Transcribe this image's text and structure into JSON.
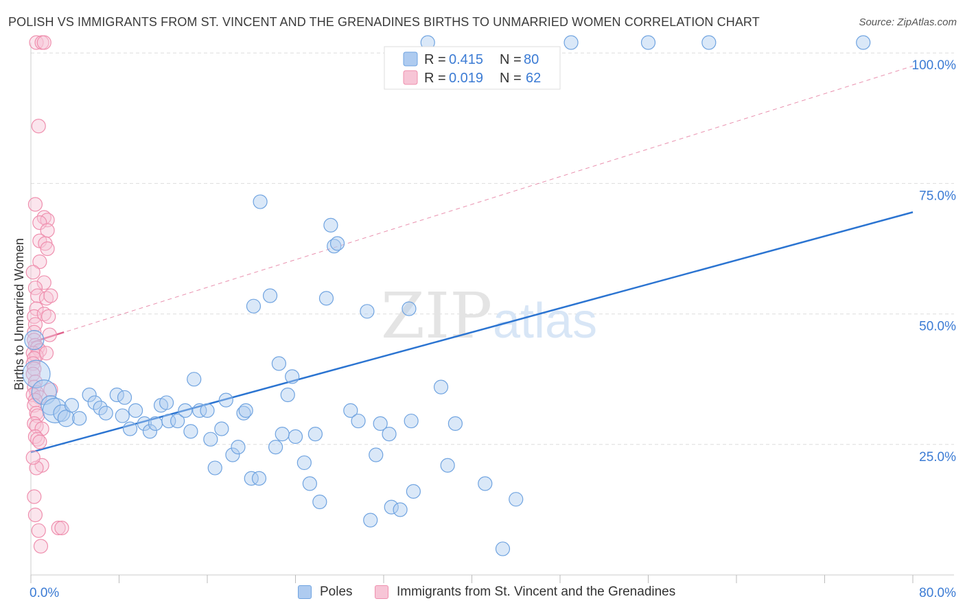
{
  "title": "POLISH VS IMMIGRANTS FROM ST. VINCENT AND THE GRENADINES BIRTHS TO UNMARRIED WOMEN CORRELATION CHART",
  "source": "Source: ZipAtlas.com",
  "watermark": {
    "zip": "ZIP",
    "atlas": "atlas"
  },
  "colors": {
    "poles": "#6fa3e0",
    "poles_fill": "#aecbf0",
    "immigrants": "#ef8fae",
    "immigrants_fill": "#f7c5d6",
    "poles_line": "#2b74d1",
    "immigrants_line": "#e0628c",
    "axis_label": "#3b7bd4",
    "grid": "#dddddd"
  },
  "legend_top": {
    "rows": [
      {
        "r_label": "R = ",
        "r_value": "0.415",
        "n_label": "N = ",
        "n_value": "80"
      },
      {
        "r_label": "R = ",
        "r_value": "0.019",
        "n_label": "N = ",
        "n_value": "62"
      }
    ]
  },
  "legend_bottom": {
    "items": [
      {
        "label": "Poles"
      },
      {
        "label": "Immigrants from St. Vincent and the Grenadines"
      }
    ]
  },
  "chart_data": {
    "type": "scatter",
    "title": "POLISH VS IMMIGRANTS FROM ST. VINCENT AND THE GRENADINES BIRTHS TO UNMARRIED WOMEN CORRELATION CHART",
    "xlabel": "",
    "ylabel": "Births to Unmarried Women",
    "xlim": [
      0,
      80
    ],
    "ylim": [
      0,
      102
    ],
    "x_tick_labels": [
      {
        "value": 0,
        "label": "0.0%"
      },
      {
        "value": 80,
        "label": "80.0%"
      }
    ],
    "y_tick_labels": [
      {
        "value": 25,
        "label": "25.0%"
      },
      {
        "value": 50,
        "label": "50.0%"
      },
      {
        "value": 75,
        "label": "75.0%"
      },
      {
        "value": 100,
        "label": "100.0%"
      }
    ],
    "series": [
      {
        "name": "Poles",
        "R": 0.415,
        "N": 80,
        "trend": {
          "x0": 0,
          "y0": 23.5,
          "x1": 80,
          "y1": 69.5,
          "style": "solid"
        },
        "points": [
          [
            0.3,
            45,
            14
          ],
          [
            0.5,
            38.5,
            20
          ],
          [
            1.2,
            35,
            18
          ],
          [
            1.8,
            32.5,
            14
          ],
          [
            2.2,
            31.5,
            18
          ],
          [
            2.8,
            31,
            12
          ],
          [
            3.2,
            30,
            12
          ],
          [
            3.7,
            32.5,
            10
          ],
          [
            4.4,
            30,
            10
          ],
          [
            5.3,
            34.5,
            10
          ],
          [
            5.8,
            33,
            10
          ],
          [
            6.3,
            32,
            10
          ],
          [
            6.8,
            31,
            10
          ],
          [
            7.8,
            34.5,
            10
          ],
          [
            8.5,
            34,
            10
          ],
          [
            8.3,
            30.5,
            10
          ],
          [
            9.0,
            28,
            10
          ],
          [
            9.5,
            31.5,
            10
          ],
          [
            10.3,
            29,
            10
          ],
          [
            10.8,
            27.5,
            10
          ],
          [
            11.3,
            29,
            10
          ],
          [
            11.8,
            32.5,
            10
          ],
          [
            12.3,
            33,
            10
          ],
          [
            12.5,
            29.5,
            10
          ],
          [
            13.3,
            29.5,
            10
          ],
          [
            14.0,
            31.5,
            10
          ],
          [
            14.5,
            27.5,
            10
          ],
          [
            15.3,
            31.5,
            10
          ],
          [
            16.0,
            31.5,
            10
          ],
          [
            14.8,
            37.5,
            10
          ],
          [
            16.3,
            26,
            10
          ],
          [
            16.7,
            20.5,
            10
          ],
          [
            17.3,
            28,
            10
          ],
          [
            17.7,
            33.5,
            10
          ],
          [
            18.3,
            23,
            10
          ],
          [
            18.8,
            24.5,
            10
          ],
          [
            19.3,
            31,
            10
          ],
          [
            19.5,
            31.5,
            10
          ],
          [
            20.0,
            18.5,
            10
          ],
          [
            20.2,
            51.5,
            10
          ],
          [
            20.7,
            18.5,
            10
          ],
          [
            20.8,
            71.5,
            10
          ],
          [
            21.7,
            53.5,
            10
          ],
          [
            22.2,
            24.5,
            10
          ],
          [
            22.5,
            40.5,
            10
          ],
          [
            22.8,
            27,
            10
          ],
          [
            23.3,
            34.5,
            10
          ],
          [
            23.7,
            38,
            10
          ],
          [
            24.0,
            26.5,
            10
          ],
          [
            24.8,
            21.5,
            10
          ],
          [
            25.3,
            17.5,
            10
          ],
          [
            25.8,
            27,
            10
          ],
          [
            26.2,
            14,
            10
          ],
          [
            26.8,
            53,
            10
          ],
          [
            27.2,
            67,
            10
          ],
          [
            27.5,
            63,
            10
          ],
          [
            27.8,
            63.5,
            10
          ],
          [
            29.0,
            31.5,
            10
          ],
          [
            29.7,
            29.5,
            10
          ],
          [
            30.5,
            50.5,
            10
          ],
          [
            30.8,
            10.5,
            10
          ],
          [
            31.3,
            23,
            10
          ],
          [
            31.7,
            29,
            10
          ],
          [
            32.5,
            27,
            10
          ],
          [
            32.7,
            13,
            10
          ],
          [
            33.5,
            12.5,
            10
          ],
          [
            34.5,
            29.5,
            10
          ],
          [
            34.7,
            16,
            10
          ],
          [
            34.3,
            51,
            10
          ],
          [
            37.2,
            36,
            10
          ],
          [
            37.8,
            21,
            10
          ],
          [
            38.5,
            29,
            10
          ],
          [
            41.2,
            17.5,
            10
          ],
          [
            42.8,
            5,
            10
          ],
          [
            44.0,
            14.5,
            10
          ],
          [
            36.0,
            102,
            10
          ],
          [
            49.0,
            102,
            10
          ],
          [
            56.0,
            102,
            10
          ],
          [
            61.5,
            102,
            10
          ],
          [
            75.5,
            102,
            10
          ]
        ]
      },
      {
        "name": "Immigrants from St. Vincent and the Grenadines",
        "R": 0.019,
        "N": 62,
        "trend": {
          "x0": 0,
          "y0": 44.5,
          "x1": 3.0,
          "y1": 46.5,
          "style": "solid"
        },
        "trend_dashed": {
          "x0": 0,
          "y0": 44.5,
          "x1": 80,
          "y1": 97.5,
          "style": "dashed"
        },
        "points": [
          [
            0.5,
            102,
            10
          ],
          [
            1.0,
            102,
            10
          ],
          [
            1.2,
            102,
            10
          ],
          [
            0.7,
            86,
            10
          ],
          [
            0.4,
            71,
            10
          ],
          [
            1.2,
            68.5,
            10
          ],
          [
            1.5,
            68,
            10
          ],
          [
            0.8,
            67.5,
            10
          ],
          [
            1.5,
            66,
            10
          ],
          [
            0.8,
            64,
            10
          ],
          [
            1.3,
            63.5,
            10
          ],
          [
            1.5,
            62.5,
            10
          ],
          [
            0.8,
            60,
            10
          ],
          [
            1.2,
            56,
            10
          ],
          [
            0.4,
            55,
            10
          ],
          [
            0.6,
            53.5,
            10
          ],
          [
            1.4,
            53,
            10
          ],
          [
            1.8,
            53.5,
            10
          ],
          [
            0.5,
            51,
            10
          ],
          [
            0.3,
            49.5,
            10
          ],
          [
            1.2,
            50,
            10
          ],
          [
            1.6,
            49.5,
            10
          ],
          [
            0.4,
            48,
            10
          ],
          [
            0.3,
            46.5,
            10
          ],
          [
            1.7,
            46,
            10
          ],
          [
            0.3,
            45,
            10
          ],
          [
            0.4,
            44,
            10
          ],
          [
            0.6,
            43.5,
            10
          ],
          [
            0.8,
            43,
            10
          ],
          [
            0.2,
            42.5,
            10
          ],
          [
            0.5,
            42,
            10
          ],
          [
            0.3,
            41.5,
            10
          ],
          [
            0.2,
            40.5,
            10
          ],
          [
            1.4,
            42.5,
            10
          ],
          [
            0.3,
            39.5,
            10
          ],
          [
            0.2,
            38.5,
            10
          ],
          [
            0.4,
            37,
            10
          ],
          [
            0.3,
            36,
            10
          ],
          [
            0.5,
            35,
            10
          ],
          [
            0.2,
            34.5,
            10
          ],
          [
            0.8,
            34,
            10
          ],
          [
            0.4,
            33.5,
            10
          ],
          [
            1.8,
            35.5,
            10
          ],
          [
            0.3,
            32.5,
            10
          ],
          [
            0.5,
            31,
            10
          ],
          [
            0.6,
            30.5,
            10
          ],
          [
            0.3,
            29,
            10
          ],
          [
            0.5,
            28.5,
            10
          ],
          [
            1.0,
            28,
            10
          ],
          [
            0.4,
            26.5,
            10
          ],
          [
            0.6,
            26,
            10
          ],
          [
            0.8,
            25.5,
            10
          ],
          [
            1.0,
            21,
            10
          ],
          [
            0.5,
            20.5,
            10
          ],
          [
            0.4,
            11.5,
            10
          ],
          [
            0.7,
            8.5,
            10
          ],
          [
            0.9,
            5.5,
            10
          ],
          [
            2.5,
            9,
            10
          ],
          [
            2.8,
            9,
            10
          ],
          [
            0.2,
            22.5,
            10
          ],
          [
            0.3,
            15,
            10
          ],
          [
            0.2,
            58,
            10
          ]
        ]
      }
    ]
  }
}
